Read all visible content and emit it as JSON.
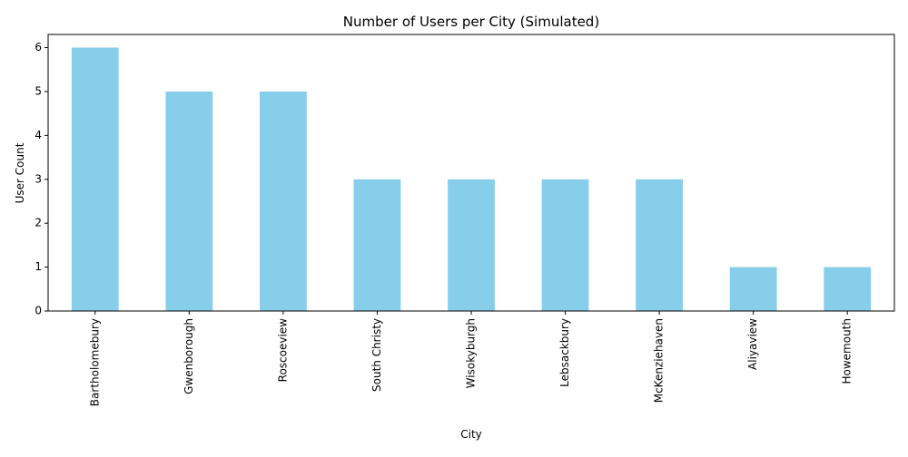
{
  "chart_data": {
    "type": "bar",
    "title": "Number of Users per City (Simulated)",
    "xlabel": "City",
    "ylabel": "User Count",
    "categories": [
      "Bartholomebury",
      "Gwenborough",
      "Roscoeview",
      "South Christy",
      "Wisokyburgh",
      "Lebsackbury",
      "McKenziehaven",
      "Aliyaview",
      "Howemouth"
    ],
    "values": [
      6,
      5,
      5,
      3,
      3,
      3,
      3,
      1,
      1
    ],
    "ylim": [
      0,
      6.3
    ],
    "yticks": [
      0,
      1,
      2,
      3,
      4,
      5,
      6
    ],
    "bar_color": "#87ceeb",
    "grid": false,
    "legend": "none",
    "x_tick_rotation": "vertical"
  }
}
